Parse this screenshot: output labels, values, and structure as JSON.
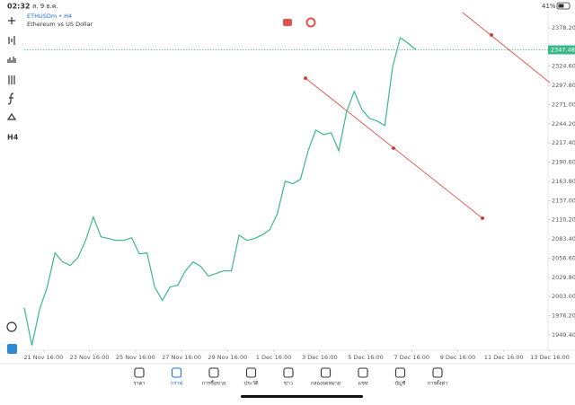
{
  "status_bar": {
    "time": "02:32",
    "date": "ส. 9 ธ.ค.",
    "battery": "41%"
  },
  "header": {
    "symbol": "ETHUSDm • H4",
    "description": "Ethereum vs US Dollar"
  },
  "toolbar": {
    "timeframe": "H4"
  },
  "chart_data": {
    "type": "line",
    "color": "#3cb88a",
    "x": [
      -5,
      -3,
      -1,
      1,
      3,
      5,
      7,
      9,
      11,
      13,
      15,
      17,
      19,
      21,
      23,
      25,
      27,
      29,
      31,
      33,
      35,
      37,
      39,
      41,
      43,
      45,
      47,
      49,
      51,
      53,
      55,
      57,
      59,
      61,
      63,
      65,
      67,
      69,
      71,
      73,
      75,
      77,
      79,
      81,
      83,
      85,
      87,
      89,
      91,
      93,
      95,
      97
    ],
    "values": [
      1987.5,
      1934.8,
      1985,
      2016.3,
      2063.9,
      2051.3,
      2046.3,
      2057.6,
      2081.4,
      2114,
      2086.4,
      2083.9,
      2081.4,
      2081.4,
      2085.1,
      2062.6,
      2063.9,
      2016.3,
      1997.5,
      2016.3,
      2018.8,
      2038.8,
      2051.3,
      2045.1,
      2031.3,
      2035.1,
      2038.8,
      2038.8,
      2088.9,
      2081.4,
      2083.9,
      2088.9,
      2096.4,
      2118.9,
      2164.1,
      2160.3,
      2166.6,
      2206.6,
      2235.4,
      2229.2,
      2231.7,
      2206.6,
      2260.5,
      2289.3,
      2264.2,
      2251.7,
      2248,
      2241.7,
      2323.1,
      2364.4,
      2356.9,
      2348.1
    ],
    "last_price": 2347.48,
    "xlim": [
      -5,
      132
    ],
    "ylim": [
      1928,
      2402
    ],
    "xticks": [
      {
        "value": 0,
        "label": "21 Nov 16:00"
      },
      {
        "value": 12,
        "label": "23 Nov 16:00"
      },
      {
        "value": 24,
        "label": "25 Nov 16:00"
      },
      {
        "value": 36,
        "label": "27 Nov 16:00"
      },
      {
        "value": 48,
        "label": "29 Nov 16:00"
      },
      {
        "value": 60,
        "label": "1 Dec 16:00"
      },
      {
        "value": 72,
        "label": "3 Dec 16:00"
      },
      {
        "value": 84,
        "label": "5 Dec 16:00"
      },
      {
        "value": 96,
        "label": "7 Dec 16:00"
      },
      {
        "value": 108,
        "label": "9 Dec 16:00"
      },
      {
        "value": 120,
        "label": "11 Dec 16:00"
      },
      {
        "value": 132,
        "label": "13 Dec 16:00"
      }
    ],
    "yticks": [
      {
        "value": 2378.2,
        "label": "2378.20"
      },
      {
        "value": 2324.6,
        "label": "2324.60"
      },
      {
        "value": 2297.8,
        "label": "2297.80"
      },
      {
        "value": 2271,
        "label": "2271.00"
      },
      {
        "value": 2244.2,
        "label": "2244.20"
      },
      {
        "value": 2217.4,
        "label": "2217.40"
      },
      {
        "value": 2190.6,
        "label": "2190.60"
      },
      {
        "value": 2163.8,
        "label": "2163.80"
      },
      {
        "value": 2137,
        "label": "2137.00"
      },
      {
        "value": 2110.2,
        "label": "2110.20"
      },
      {
        "value": 2083.4,
        "label": "2083.40"
      },
      {
        "value": 2056.6,
        "label": "2056.60"
      },
      {
        "value": 2029.8,
        "label": "2029.80"
      },
      {
        "value": 2003,
        "label": "2003.00"
      },
      {
        "value": 1976.2,
        "label": "1976.20"
      },
      {
        "value": 1949.4,
        "label": "1949.40"
      }
    ]
  },
  "nav": [
    "ราคา",
    "กราฟ",
    "การซื้อขาย",
    "ประวัติ",
    "ข่าว",
    "กล่องจดหมาย",
    "แชท",
    "บัญชี",
    "การตั้งค่า"
  ]
}
